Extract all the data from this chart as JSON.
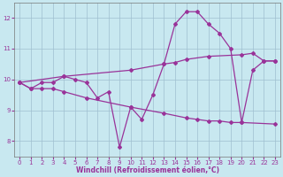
{
  "background_color": "#c8e8f0",
  "grid_color": "#9fbfcf",
  "line_color": "#993399",
  "marker": "D",
  "markersize": 2.0,
  "linewidth": 0.9,
  "xlabel": "Windchill (Refroidissement éolien,°C)",
  "xlabel_fontsize": 5.5,
  "tick_fontsize": 5.0,
  "xlim": [
    -0.5,
    23.5
  ],
  "ylim": [
    7.5,
    12.5
  ],
  "yticks": [
    8,
    9,
    10,
    11,
    12
  ],
  "xticks": [
    0,
    1,
    2,
    3,
    4,
    5,
    6,
    7,
    8,
    9,
    10,
    11,
    12,
    13,
    14,
    15,
    16,
    17,
    18,
    19,
    20,
    21,
    22,
    23
  ],
  "series": [
    {
      "x": [
        0,
        1,
        2,
        3,
        4,
        5,
        6,
        7,
        8,
        9,
        10,
        11,
        12,
        13,
        14,
        15,
        16,
        17,
        18,
        19,
        20,
        21,
        22,
        23
      ],
      "y": [
        9.9,
        9.7,
        9.9,
        9.9,
        10.1,
        10.0,
        9.9,
        9.4,
        9.6,
        7.8,
        9.1,
        8.7,
        9.5,
        10.5,
        11.8,
        12.2,
        12.2,
        11.8,
        11.5,
        11.0,
        8.6,
        10.3,
        10.6,
        10.6
      ]
    },
    {
      "x": [
        0,
        4,
        10,
        13,
        14,
        15,
        17,
        20,
        21,
        22,
        23
      ],
      "y": [
        9.9,
        10.1,
        10.3,
        10.5,
        10.55,
        10.65,
        10.75,
        10.8,
        10.85,
        10.6,
        10.6
      ]
    },
    {
      "x": [
        0,
        1,
        2,
        3,
        4,
        6,
        10,
        13,
        15,
        16,
        17,
        18,
        19,
        20,
        23
      ],
      "y": [
        9.9,
        9.7,
        9.7,
        9.7,
        9.6,
        9.4,
        9.1,
        8.9,
        8.75,
        8.7,
        8.65,
        8.65,
        8.6,
        8.6,
        8.55
      ]
    }
  ]
}
